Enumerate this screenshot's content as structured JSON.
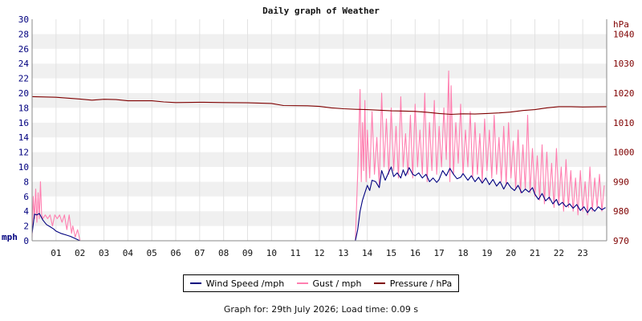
{
  "chart_data": {
    "type": "line",
    "title": "Daily graph of Weather",
    "left_axis": {
      "unit": "mph",
      "range": [
        0,
        30
      ],
      "ticks": [
        0,
        2,
        4,
        6,
        8,
        10,
        12,
        14,
        16,
        18,
        20,
        22,
        24,
        26,
        28,
        30
      ],
      "color": "#00007f"
    },
    "right_axis": {
      "unit": "hPa",
      "range": [
        970,
        1045
      ],
      "ticks": [
        970,
        980,
        990,
        1000,
        1010,
        1020,
        1030,
        1040
      ],
      "color": "#7f0000"
    },
    "x_axis": {
      "range": [
        0,
        24
      ],
      "tick_labels": [
        "01",
        "02",
        "03",
        "04",
        "05",
        "06",
        "07",
        "08",
        "09",
        "10",
        "11",
        "12",
        "13",
        "14",
        "15",
        "16",
        "17",
        "18",
        "19",
        "20",
        "21",
        "22",
        "23"
      ]
    },
    "grid": true,
    "series": [
      {
        "name": "Wind Speed /mph",
        "color": "#00007f",
        "axis": "left",
        "points": [
          [
            0,
            1.0
          ],
          [
            0.1,
            3.6
          ],
          [
            0.2,
            3.5
          ],
          [
            0.3,
            3.7
          ],
          [
            0.45,
            2.8
          ],
          [
            0.6,
            2.2
          ],
          [
            0.75,
            1.9
          ],
          [
            0.9,
            1.6
          ],
          [
            1.0,
            1.3
          ],
          [
            1.2,
            1.0
          ],
          [
            1.4,
            0.8
          ],
          [
            1.6,
            0.6
          ],
          [
            1.8,
            0.3
          ],
          [
            2.0,
            0.0
          ],
          [
            13.5,
            0.0
          ],
          [
            13.6,
            1.5
          ],
          [
            13.7,
            4.0
          ],
          [
            13.8,
            5.5
          ],
          [
            13.9,
            6.5
          ],
          [
            14.0,
            7.5
          ],
          [
            14.1,
            6.8
          ],
          [
            14.2,
            8.2
          ],
          [
            14.35,
            8.0
          ],
          [
            14.5,
            7.2
          ],
          [
            14.6,
            9.5
          ],
          [
            14.75,
            8.2
          ],
          [
            14.9,
            9.3
          ],
          [
            15.0,
            10.0
          ],
          [
            15.1,
            8.7
          ],
          [
            15.25,
            9.2
          ],
          [
            15.4,
            8.5
          ],
          [
            15.5,
            9.6
          ],
          [
            15.6,
            8.8
          ],
          [
            15.75,
            9.9
          ],
          [
            15.9,
            9.0
          ],
          [
            16.0,
            8.8
          ],
          [
            16.15,
            9.2
          ],
          [
            16.3,
            8.5
          ],
          [
            16.45,
            9.0
          ],
          [
            16.6,
            8.0
          ],
          [
            16.75,
            8.5
          ],
          [
            16.9,
            7.9
          ],
          [
            17.0,
            8.3
          ],
          [
            17.15,
            9.5
          ],
          [
            17.3,
            8.8
          ],
          [
            17.45,
            9.8
          ],
          [
            17.6,
            9.0
          ],
          [
            17.75,
            8.4
          ],
          [
            17.9,
            8.6
          ],
          [
            18.0,
            9.1
          ],
          [
            18.2,
            8.2
          ],
          [
            18.35,
            8.8
          ],
          [
            18.5,
            8.0
          ],
          [
            18.65,
            8.6
          ],
          [
            18.8,
            7.8
          ],
          [
            18.95,
            8.5
          ],
          [
            19.1,
            7.6
          ],
          [
            19.25,
            8.3
          ],
          [
            19.4,
            7.4
          ],
          [
            19.55,
            8.0
          ],
          [
            19.7,
            7.0
          ],
          [
            19.85,
            7.9
          ],
          [
            20.0,
            7.2
          ],
          [
            20.15,
            6.8
          ],
          [
            20.3,
            7.5
          ],
          [
            20.45,
            6.5
          ],
          [
            20.6,
            7.0
          ],
          [
            20.75,
            6.6
          ],
          [
            20.9,
            7.2
          ],
          [
            21.0,
            6.3
          ],
          [
            21.15,
            5.6
          ],
          [
            21.3,
            6.4
          ],
          [
            21.45,
            5.4
          ],
          [
            21.6,
            5.9
          ],
          [
            21.75,
            5.0
          ],
          [
            21.9,
            5.6
          ],
          [
            22.0,
            4.8
          ],
          [
            22.15,
            5.2
          ],
          [
            22.3,
            4.6
          ],
          [
            22.45,
            5.0
          ],
          [
            22.6,
            4.4
          ],
          [
            22.75,
            4.9
          ],
          [
            22.9,
            4.1
          ],
          [
            23.05,
            4.6
          ],
          [
            23.2,
            3.8
          ],
          [
            23.35,
            4.5
          ],
          [
            23.5,
            4.0
          ],
          [
            23.65,
            4.6
          ],
          [
            23.8,
            4.2
          ],
          [
            23.95,
            4.5
          ]
        ]
      },
      {
        "name": "Gust / mph",
        "color": "#ff7fb0",
        "axis": "left",
        "points": [
          [
            0,
            0.5
          ],
          [
            0.05,
            6.0
          ],
          [
            0.1,
            3.0
          ],
          [
            0.15,
            7.0
          ],
          [
            0.2,
            2.5
          ],
          [
            0.25,
            6.5
          ],
          [
            0.3,
            3.0
          ],
          [
            0.35,
            8.0
          ],
          [
            0.4,
            3.5
          ],
          [
            0.45,
            3.0
          ],
          [
            0.55,
            3.5
          ],
          [
            0.65,
            3.0
          ],
          [
            0.75,
            3.5
          ],
          [
            0.85,
            2.0
          ],
          [
            0.95,
            3.5
          ],
          [
            1.05,
            3.0
          ],
          [
            1.15,
            3.5
          ],
          [
            1.25,
            2.5
          ],
          [
            1.35,
            3.5
          ],
          [
            1.45,
            1.5
          ],
          [
            1.55,
            3.5
          ],
          [
            1.65,
            1.0
          ],
          [
            1.7,
            2.0
          ],
          [
            1.8,
            0.5
          ],
          [
            1.9,
            1.5
          ],
          [
            2.0,
            0.0
          ],
          [
            13.5,
            0.0
          ],
          [
            13.6,
            9.0
          ],
          [
            13.7,
            20.5
          ],
          [
            13.75,
            8.0
          ],
          [
            13.8,
            16.0
          ],
          [
            13.85,
            9.5
          ],
          [
            13.9,
            19.0
          ],
          [
            13.95,
            8.0
          ],
          [
            14.0,
            15.0
          ],
          [
            14.1,
            8.5
          ],
          [
            14.2,
            17.5
          ],
          [
            14.3,
            9.0
          ],
          [
            14.4,
            14.0
          ],
          [
            14.5,
            7.5
          ],
          [
            14.6,
            20.0
          ],
          [
            14.7,
            10.0
          ],
          [
            14.8,
            16.5
          ],
          [
            14.9,
            9.0
          ],
          [
            15.0,
            18.0
          ],
          [
            15.1,
            9.5
          ],
          [
            15.2,
            15.5
          ],
          [
            15.3,
            8.5
          ],
          [
            15.4,
            19.5
          ],
          [
            15.5,
            10.0
          ],
          [
            15.6,
            14.5
          ],
          [
            15.7,
            9.0
          ],
          [
            15.8,
            17.0
          ],
          [
            15.9,
            8.5
          ],
          [
            16.0,
            18.5
          ],
          [
            16.1,
            10.0
          ],
          [
            16.2,
            15.0
          ],
          [
            16.3,
            9.0
          ],
          [
            16.4,
            20.0
          ],
          [
            16.5,
            8.0
          ],
          [
            16.6,
            16.0
          ],
          [
            16.7,
            9.5
          ],
          [
            16.8,
            19.0
          ],
          [
            16.9,
            9.0
          ],
          [
            17.0,
            15.5
          ],
          [
            17.1,
            10.0
          ],
          [
            17.2,
            18.0
          ],
          [
            17.3,
            11.0
          ],
          [
            17.4,
            23.0
          ],
          [
            17.45,
            8.0
          ],
          [
            17.5,
            21.0
          ],
          [
            17.6,
            9.0
          ],
          [
            17.7,
            16.0
          ],
          [
            17.8,
            10.5
          ],
          [
            17.9,
            18.5
          ],
          [
            18.0,
            9.0
          ],
          [
            18.1,
            15.0
          ],
          [
            18.2,
            10.0
          ],
          [
            18.3,
            17.5
          ],
          [
            18.4,
            8.5
          ],
          [
            18.5,
            16.0
          ],
          [
            18.6,
            9.0
          ],
          [
            18.7,
            14.5
          ],
          [
            18.8,
            8.0
          ],
          [
            18.9,
            16.5
          ],
          [
            19.0,
            9.5
          ],
          [
            19.1,
            15.0
          ],
          [
            19.2,
            8.5
          ],
          [
            19.3,
            17.0
          ],
          [
            19.4,
            9.0
          ],
          [
            19.5,
            14.0
          ],
          [
            19.6,
            8.0
          ],
          [
            19.7,
            15.5
          ],
          [
            19.8,
            7.5
          ],
          [
            19.9,
            16.0
          ],
          [
            20.0,
            8.5
          ],
          [
            20.1,
            13.5
          ],
          [
            20.2,
            7.0
          ],
          [
            20.3,
            15.0
          ],
          [
            20.4,
            6.5
          ],
          [
            20.5,
            13.0
          ],
          [
            20.6,
            7.0
          ],
          [
            20.7,
            17.0
          ],
          [
            20.8,
            6.5
          ],
          [
            20.9,
            12.5
          ],
          [
            21.0,
            6.0
          ],
          [
            21.1,
            11.5
          ],
          [
            21.2,
            5.5
          ],
          [
            21.3,
            13.0
          ],
          [
            21.4,
            5.0
          ],
          [
            21.5,
            12.0
          ],
          [
            21.6,
            5.5
          ],
          [
            21.7,
            10.5
          ],
          [
            21.8,
            4.5
          ],
          [
            21.9,
            12.5
          ],
          [
            22.0,
            5.0
          ],
          [
            22.1,
            10.0
          ],
          [
            22.2,
            4.0
          ],
          [
            22.3,
            11.0
          ],
          [
            22.4,
            4.5
          ],
          [
            22.5,
            9.5
          ],
          [
            22.6,
            4.0
          ],
          [
            22.7,
            8.5
          ],
          [
            22.8,
            3.5
          ],
          [
            22.9,
            9.5
          ],
          [
            23.0,
            4.0
          ],
          [
            23.1,
            8.0
          ],
          [
            23.2,
            3.5
          ],
          [
            23.3,
            10.0
          ],
          [
            23.4,
            4.0
          ],
          [
            23.5,
            8.5
          ],
          [
            23.6,
            4.5
          ],
          [
            23.7,
            9.0
          ],
          [
            23.8,
            4.0
          ],
          [
            23.9,
            7.5
          ]
        ]
      },
      {
        "name": "Pressure / hPa",
        "color": "#7f0000",
        "axis": "right",
        "points": [
          [
            0,
            1018.8
          ],
          [
            1.0,
            1018.6
          ],
          [
            1.5,
            1018.3
          ],
          [
            2.0,
            1018.0
          ],
          [
            2.5,
            1017.6
          ],
          [
            3.0,
            1017.9
          ],
          [
            3.5,
            1017.8
          ],
          [
            4.0,
            1017.4
          ],
          [
            5.0,
            1017.4
          ],
          [
            5.5,
            1017.0
          ],
          [
            6.0,
            1016.8
          ],
          [
            7.0,
            1016.9
          ],
          [
            8.0,
            1016.8
          ],
          [
            9.0,
            1016.7
          ],
          [
            10.0,
            1016.5
          ],
          [
            10.5,
            1015.8
          ],
          [
            11.5,
            1015.7
          ],
          [
            12.0,
            1015.5
          ],
          [
            12.5,
            1015.0
          ],
          [
            13.0,
            1014.7
          ],
          [
            13.5,
            1014.5
          ],
          [
            14.0,
            1014.4
          ],
          [
            15.0,
            1014.0
          ],
          [
            16.0,
            1013.8
          ],
          [
            16.5,
            1013.5
          ],
          [
            17.0,
            1013.1
          ],
          [
            17.5,
            1012.8
          ],
          [
            18.0,
            1013.0
          ],
          [
            18.5,
            1012.9
          ],
          [
            19.0,
            1013.1
          ],
          [
            19.5,
            1013.3
          ],
          [
            20.0,
            1013.6
          ],
          [
            20.5,
            1014.1
          ],
          [
            21.0,
            1014.4
          ],
          [
            21.5,
            1015.0
          ],
          [
            22.0,
            1015.4
          ],
          [
            22.5,
            1015.4
          ],
          [
            23.0,
            1015.3
          ],
          [
            24.0,
            1015.4
          ]
        ]
      }
    ]
  },
  "legend": [
    {
      "label": "Wind Speed /mph",
      "color": "#00007f"
    },
    {
      "label": "Gust / mph",
      "color": "#ff7fb0"
    },
    {
      "label": "Pressure / hPa",
      "color": "#7f0000"
    }
  ],
  "footer": "Graph for: 29th July 2026; Load time: 0.09 s"
}
